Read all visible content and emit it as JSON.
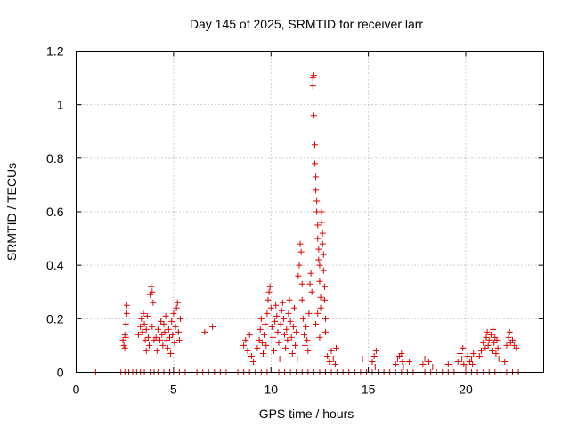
{
  "chart_data": {
    "type": "scatter",
    "title": "Day 145 of 2025, SRMTID for receiver larr",
    "xlabel": "GPS time / hours",
    "ylabel": "SRMTID / TECUs",
    "xlim": [
      0,
      24
    ],
    "ylim": [
      0,
      1.2
    ],
    "xticks": [
      0,
      5,
      10,
      15,
      20
    ],
    "xtick_labels": [
      "0",
      "5",
      "10",
      "15",
      "20"
    ],
    "yticks": [
      0,
      0.2,
      0.4,
      0.6,
      0.8,
      1.0,
      1.2
    ],
    "ytick_labels": [
      "0",
      "0.2",
      "0.4",
      "0.6",
      "0.8",
      "1",
      "1.2"
    ],
    "grid": true,
    "marker": "+",
    "color": "#e00000",
    "series": [
      {
        "name": "SRMTID",
        "points": [
          [
            1.0,
            0
          ],
          [
            2.3,
            0
          ],
          [
            2.5,
            0
          ],
          [
            2.7,
            0
          ],
          [
            2.9,
            0
          ],
          [
            3.1,
            0
          ],
          [
            3.3,
            0
          ],
          [
            3.5,
            0
          ],
          [
            3.8,
            0
          ],
          [
            4.0,
            0
          ],
          [
            4.2,
            0
          ],
          [
            4.5,
            0
          ],
          [
            4.8,
            0
          ],
          [
            5.0,
            0
          ],
          [
            5.3,
            0
          ],
          [
            5.6,
            0
          ],
          [
            5.9,
            0
          ],
          [
            6.2,
            0
          ],
          [
            6.5,
            0
          ],
          [
            6.8,
            0
          ],
          [
            7.1,
            0
          ],
          [
            7.4,
            0
          ],
          [
            7.7,
            0
          ],
          [
            8.0,
            0
          ],
          [
            8.3,
            0
          ],
          [
            8.6,
            0
          ],
          [
            8.9,
            0
          ],
          [
            9.2,
            0
          ],
          [
            9.5,
            0
          ],
          [
            9.8,
            0
          ],
          [
            10.1,
            0
          ],
          [
            10.4,
            0
          ],
          [
            10.7,
            0
          ],
          [
            11.0,
            0
          ],
          [
            11.3,
            0
          ],
          [
            11.6,
            0
          ],
          [
            11.9,
            0
          ],
          [
            12.2,
            0
          ],
          [
            12.5,
            0
          ],
          [
            12.8,
            0
          ],
          [
            13.1,
            0
          ],
          [
            13.4,
            0
          ],
          [
            13.7,
            0
          ],
          [
            14.0,
            0
          ],
          [
            14.3,
            0
          ],
          [
            14.6,
            0
          ],
          [
            14.9,
            0
          ],
          [
            15.2,
            0
          ],
          [
            15.5,
            0
          ],
          [
            15.8,
            0
          ],
          [
            16.1,
            0
          ],
          [
            16.4,
            0
          ],
          [
            16.7,
            0
          ],
          [
            17.0,
            0
          ],
          [
            17.3,
            0
          ],
          [
            17.6,
            0
          ],
          [
            17.9,
            0
          ],
          [
            18.2,
            0
          ],
          [
            18.5,
            0
          ],
          [
            18.8,
            0
          ],
          [
            19.1,
            0
          ],
          [
            19.4,
            0
          ],
          [
            19.7,
            0
          ],
          [
            20.0,
            0
          ],
          [
            20.3,
            0
          ],
          [
            20.6,
            0
          ],
          [
            20.9,
            0
          ],
          [
            21.2,
            0
          ],
          [
            21.5,
            0
          ],
          [
            21.8,
            0
          ],
          [
            22.1,
            0
          ],
          [
            22.4,
            0
          ],
          [
            22.7,
            0
          ],
          [
            2.4,
            0.12
          ],
          [
            2.45,
            0.1
          ],
          [
            2.5,
            0.14
          ],
          [
            2.55,
            0.18
          ],
          [
            2.6,
            0.22
          ],
          [
            2.6,
            0.25
          ],
          [
            2.5,
            0.09
          ],
          [
            2.55,
            0.13
          ],
          [
            3.2,
            0.14
          ],
          [
            3.3,
            0.17
          ],
          [
            3.35,
            0.2
          ],
          [
            3.4,
            0.15
          ],
          [
            3.45,
            0.22
          ],
          [
            3.5,
            0.18
          ],
          [
            3.55,
            0.12
          ],
          [
            3.6,
            0.16
          ],
          [
            3.65,
            0.21
          ],
          [
            3.7,
            0.13
          ],
          [
            3.75,
            0.1
          ],
          [
            3.6,
            0.08
          ],
          [
            3.8,
            0.29
          ],
          [
            3.85,
            0.32
          ],
          [
            3.9,
            0.3
          ],
          [
            3.95,
            0.26
          ],
          [
            3.9,
            0.17
          ],
          [
            4.0,
            0.12
          ],
          [
            4.1,
            0.13
          ],
          [
            4.15,
            0.08
          ],
          [
            4.2,
            0.16
          ],
          [
            4.3,
            0.12
          ],
          [
            4.35,
            0.19
          ],
          [
            4.4,
            0.14
          ],
          [
            4.45,
            0.1
          ],
          [
            4.5,
            0.18
          ],
          [
            4.55,
            0.15
          ],
          [
            4.6,
            0.21
          ],
          [
            4.65,
            0.12
          ],
          [
            4.7,
            0.09
          ],
          [
            4.75,
            0.16
          ],
          [
            4.8,
            0.13
          ],
          [
            4.85,
            0.07
          ],
          [
            4.9,
            0.19
          ],
          [
            4.95,
            0.14
          ],
          [
            5.0,
            0.22
          ],
          [
            5.05,
            0.11
          ],
          [
            5.1,
            0.17
          ],
          [
            5.15,
            0.24
          ],
          [
            5.2,
            0.26
          ],
          [
            5.25,
            0.15
          ],
          [
            5.3,
            0.12
          ],
          [
            5.35,
            0.2
          ],
          [
            6.6,
            0.15
          ],
          [
            7.0,
            0.17
          ],
          [
            8.6,
            0.1
          ],
          [
            8.7,
            0.12
          ],
          [
            8.8,
            0.08
          ],
          [
            8.9,
            0.14
          ],
          [
            9.0,
            0.06
          ],
          [
            9.1,
            0.04
          ],
          [
            9.3,
            0.09
          ],
          [
            9.4,
            0.12
          ],
          [
            9.45,
            0.16
          ],
          [
            9.5,
            0.2
          ],
          [
            9.55,
            0.11
          ],
          [
            9.6,
            0.07
          ],
          [
            9.65,
            0.14
          ],
          [
            9.7,
            0.18
          ],
          [
            9.75,
            0.1
          ],
          [
            9.8,
            0.22
          ],
          [
            9.85,
            0.27
          ],
          [
            9.9,
            0.3
          ],
          [
            9.95,
            0.32
          ],
          [
            10.0,
            0.24
          ],
          [
            10.05,
            0.17
          ],
          [
            10.1,
            0.13
          ],
          [
            10.15,
            0.08
          ],
          [
            10.2,
            0.19
          ],
          [
            10.25,
            0.25
          ],
          [
            10.3,
            0.21
          ],
          [
            10.35,
            0.15
          ],
          [
            10.4,
            0.11
          ],
          [
            10.45,
            0.05
          ],
          [
            10.5,
            0.18
          ],
          [
            10.55,
            0.23
          ],
          [
            10.6,
            0.26
          ],
          [
            10.65,
            0.2
          ],
          [
            10.7,
            0.14
          ],
          [
            10.75,
            0.09
          ],
          [
            10.8,
            0.16
          ],
          [
            10.85,
            0.12
          ],
          [
            10.9,
            0.22
          ],
          [
            10.95,
            0.27
          ],
          [
            11.0,
            0.19
          ],
          [
            11.05,
            0.13
          ],
          [
            11.1,
            0.07
          ],
          [
            11.15,
            0.17
          ],
          [
            11.2,
            0.24
          ],
          [
            11.25,
            0.1
          ],
          [
            11.3,
            0.15
          ],
          [
            11.35,
            0.05
          ],
          [
            11.4,
            0.36
          ],
          [
            11.45,
            0.4
          ],
          [
            11.5,
            0.48
          ],
          [
            11.55,
            0.45
          ],
          [
            11.6,
            0.33
          ],
          [
            11.6,
            0.27
          ],
          [
            11.65,
            0.2
          ],
          [
            11.7,
            0.14
          ],
          [
            11.75,
            0.1
          ],
          [
            11.8,
            0.17
          ],
          [
            11.85,
            0.12
          ],
          [
            11.9,
            0.08
          ],
          [
            11.95,
            0.22
          ],
          [
            12.0,
            0.33
          ],
          [
            12.05,
            0.37
          ],
          [
            12.1,
            0.3
          ],
          [
            12.15,
            1.1
          ],
          [
            12.15,
            1.07
          ],
          [
            12.2,
            1.11
          ],
          [
            12.2,
            0.96
          ],
          [
            12.25,
            0.85
          ],
          [
            12.25,
            0.78
          ],
          [
            12.3,
            0.73
          ],
          [
            12.3,
            0.68
          ],
          [
            12.35,
            0.64
          ],
          [
            12.35,
            0.6
          ],
          [
            12.4,
            0.55
          ],
          [
            12.4,
            0.5
          ],
          [
            12.45,
            0.46
          ],
          [
            12.45,
            0.42
          ],
          [
            12.5,
            0.4
          ],
          [
            12.5,
            0.34
          ],
          [
            12.55,
            0.28
          ],
          [
            12.55,
            0.24
          ],
          [
            12.6,
            0.6
          ],
          [
            12.6,
            0.56
          ],
          [
            12.65,
            0.52
          ],
          [
            12.65,
            0.48
          ],
          [
            12.7,
            0.44
          ],
          [
            12.7,
            0.38
          ],
          [
            12.75,
            0.32
          ],
          [
            12.75,
            0.27
          ],
          [
            12.8,
            0.2
          ],
          [
            12.8,
            0.15
          ],
          [
            12.3,
            0.18
          ],
          [
            12.4,
            0.22
          ],
          [
            12.5,
            0.13
          ],
          [
            12.9,
            0.06
          ],
          [
            13.0,
            0.04
          ],
          [
            13.1,
            0.08
          ],
          [
            13.2,
            0.05
          ],
          [
            13.3,
            0.03
          ],
          [
            13.35,
            0.09
          ],
          [
            14.7,
            0.05
          ],
          [
            15.2,
            0.04
          ],
          [
            15.3,
            0.06
          ],
          [
            15.4,
            0.08
          ],
          [
            15.35,
            0.02
          ],
          [
            16.4,
            0.03
          ],
          [
            16.5,
            0.05
          ],
          [
            16.6,
            0.06
          ],
          [
            16.7,
            0.07
          ],
          [
            16.75,
            0.04
          ],
          [
            16.8,
            0.02
          ],
          [
            17.1,
            0.04
          ],
          [
            17.8,
            0.03
          ],
          [
            17.9,
            0.05
          ],
          [
            18.1,
            0.04
          ],
          [
            18.3,
            0.02
          ],
          [
            19.1,
            0.03
          ],
          [
            19.3,
            0.02
          ],
          [
            19.6,
            0.04
          ],
          [
            19.7,
            0.07
          ],
          [
            19.8,
            0.05
          ],
          [
            19.85,
            0.09
          ],
          [
            19.9,
            0.03
          ],
          [
            20.0,
            0.02
          ],
          [
            20.1,
            0.06
          ],
          [
            20.2,
            0.04
          ],
          [
            20.3,
            0.05
          ],
          [
            20.35,
            0.03
          ],
          [
            20.4,
            0.07
          ],
          [
            20.7,
            0.06
          ],
          [
            20.8,
            0.08
          ],
          [
            20.9,
            0.11
          ],
          [
            21.0,
            0.09
          ],
          [
            21.05,
            0.13
          ],
          [
            21.1,
            0.15
          ],
          [
            21.15,
            0.1
          ],
          [
            21.2,
            0.12
          ],
          [
            21.3,
            0.14
          ],
          [
            21.35,
            0.08
          ],
          [
            21.4,
            0.16
          ],
          [
            21.45,
            0.11
          ],
          [
            21.5,
            0.13
          ],
          [
            21.55,
            0.07
          ],
          [
            21.6,
            0.12
          ],
          [
            21.65,
            0.09
          ],
          [
            21.7,
            0.05
          ],
          [
            22.0,
            0.04
          ],
          [
            22.1,
            0.1
          ],
          [
            22.2,
            0.13
          ],
          [
            22.25,
            0.15
          ],
          [
            22.3,
            0.11
          ],
          [
            22.4,
            0.12
          ],
          [
            22.5,
            0.1
          ],
          [
            22.6,
            0.09
          ]
        ]
      }
    ]
  }
}
